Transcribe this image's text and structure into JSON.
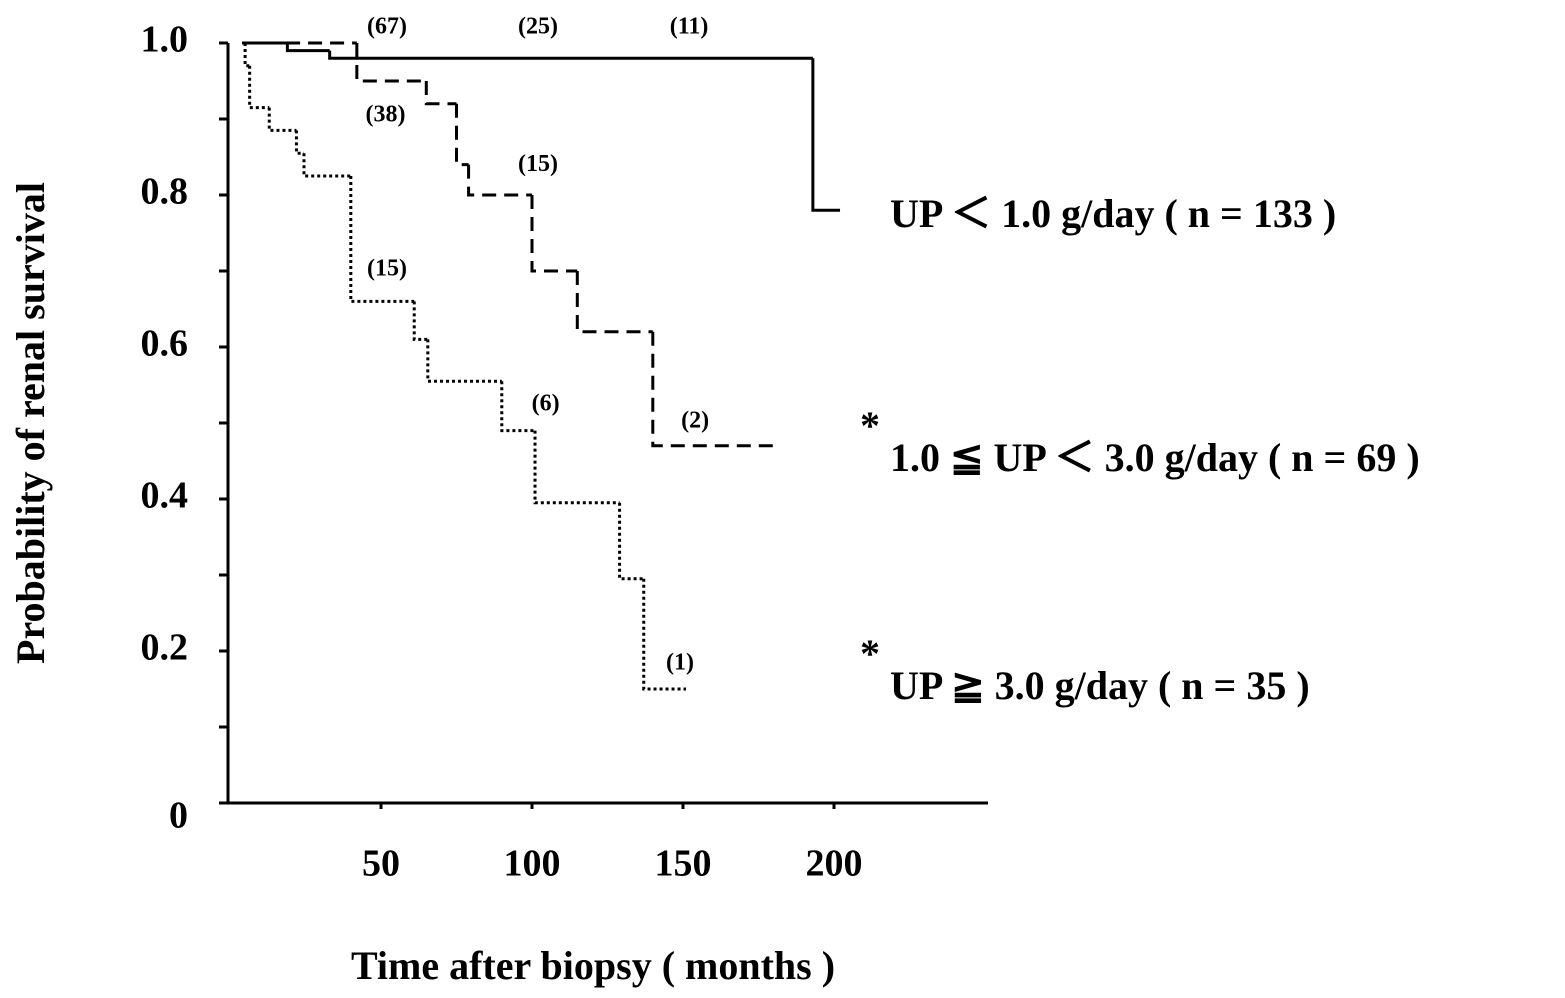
{
  "chart_data": {
    "type": "step",
    "xlabel": "Time after biopsy ( months )",
    "ylabel": "Probability of renal survival",
    "xlim": [
      0,
      250
    ],
    "ylim": [
      0,
      1
    ],
    "xticks": [
      50,
      100,
      150,
      200
    ],
    "yticks": [
      0,
      0.2,
      0.4,
      0.6,
      0.8,
      {
        "value": 1,
        "label": "1.0"
      }
    ],
    "yminorticks": [
      0.1,
      0.3,
      0.5,
      0.7,
      0.9
    ],
    "series": [
      {
        "name": "UP ＜ 1.0 g/day ( n = 133 )",
        "color": "#000000",
        "style": "solid",
        "x": [
          4,
          19,
          33,
          193,
          202
        ],
        "values": [
          1.0,
          0.99,
          0.98,
          0.78,
          0.78
        ]
      },
      {
        "name": "1.0 ≦ UP ＜ 3.0 g/day ( n = 69 )",
        "color": "#000000",
        "style": "dashed",
        "significance": "*",
        "x": [
          4,
          42,
          65,
          75,
          79,
          100,
          115,
          140,
          181
        ],
        "values": [
          1.0,
          0.95,
          0.92,
          0.84,
          0.8,
          0.7,
          0.62,
          0.47,
          0.47
        ]
      },
      {
        "name": "UP ≧ 3.0 g/day ( n = 35 )",
        "color": "#000000",
        "style": "dotted",
        "significance": "*",
        "x": [
          4,
          5,
          6.5,
          13,
          22,
          24.5,
          40,
          61,
          65.5,
          90,
          101,
          129,
          137,
          151
        ],
        "values": [
          1.0,
          0.97,
          0.915,
          0.885,
          0.855,
          0.825,
          0.66,
          0.61,
          0.555,
          0.49,
          0.395,
          0.295,
          0.15,
          0.15
        ]
      }
    ],
    "annotations": [
      {
        "text": "(67)",
        "x": 52,
        "y": 1.02
      },
      {
        "text": "(25)",
        "x": 102,
        "y": 1.02
      },
      {
        "text": "(11)",
        "x": 152,
        "y": 1.02
      },
      {
        "text": "(38)",
        "x": 51.5,
        "y": 0.904
      },
      {
        "text": "(15)",
        "x": 102,
        "y": 0.839
      },
      {
        "text": "(15)",
        "x": 52,
        "y": 0.701
      },
      {
        "text": "(6)",
        "x": 104.5,
        "y": 0.524
      },
      {
        "text": "(2)",
        "x": 154,
        "y": 0.501
      },
      {
        "text": "(1)",
        "x": 149,
        "y": 0.183
      }
    ]
  }
}
